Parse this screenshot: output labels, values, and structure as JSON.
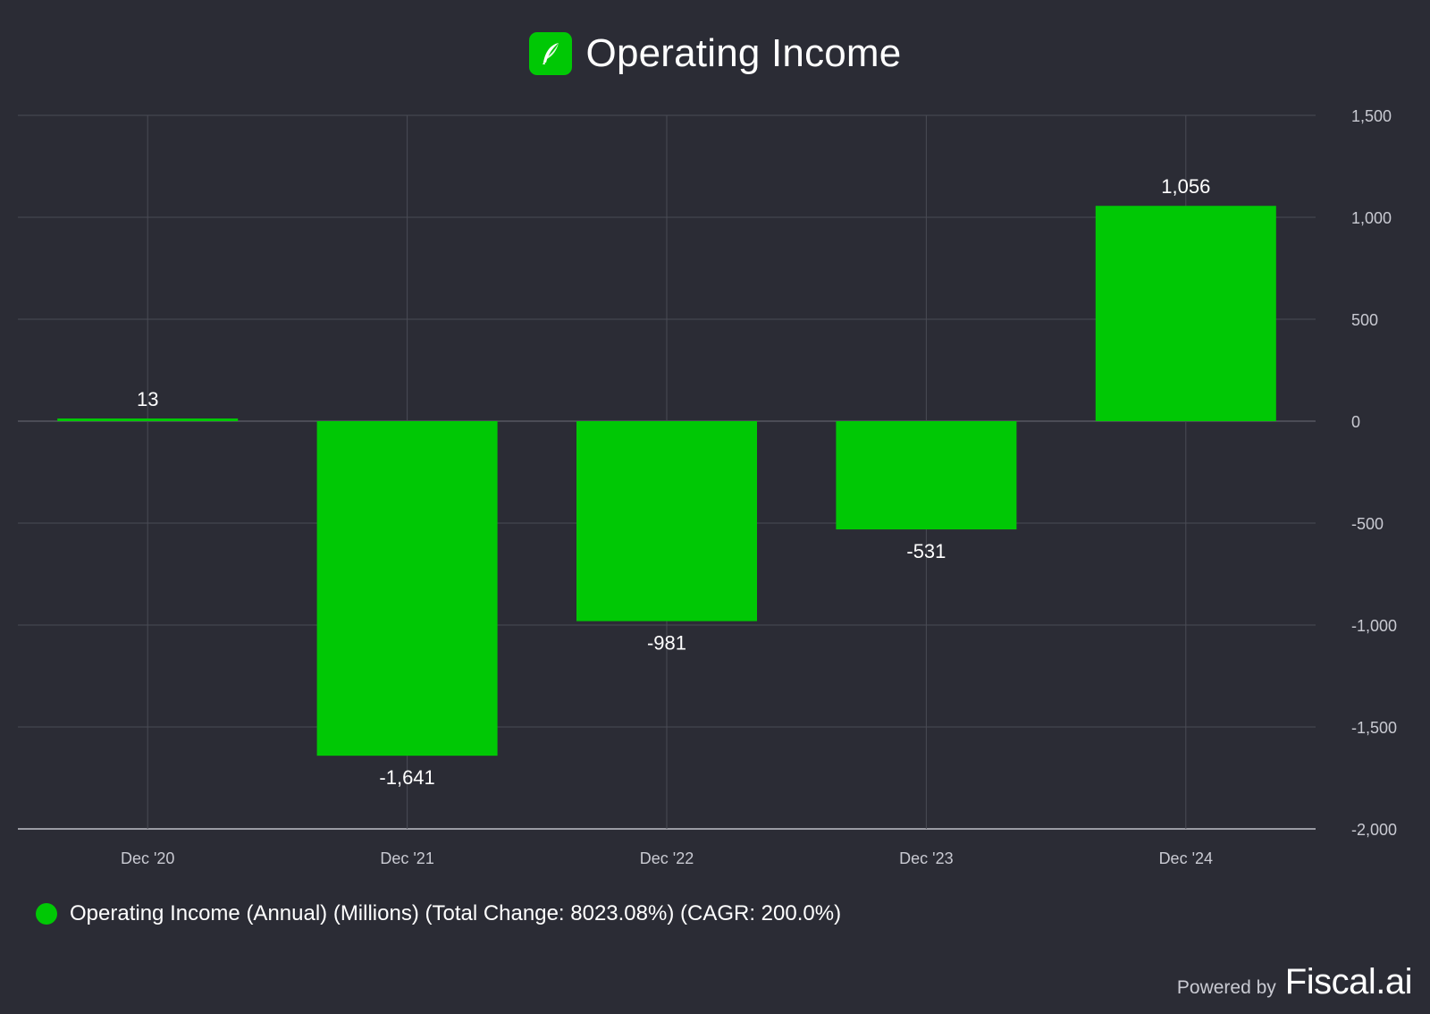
{
  "header": {
    "title": "Operating Income",
    "logo_icon": "robinhood-feather-icon"
  },
  "colors": {
    "background": "#2b2c35",
    "bar": "#00c805",
    "grid": "#4a4b55",
    "text": "#ffffff",
    "muted": "#c9cad2"
  },
  "chart_data": {
    "type": "bar",
    "title": "Operating Income",
    "categories": [
      "Dec '20",
      "Dec '21",
      "Dec '22",
      "Dec '23",
      "Dec '24"
    ],
    "series": [
      {
        "name": "Operating Income (Annual) (Millions) (Total Change: 8023.08%) (CAGR: 200.0%)",
        "values": [
          13,
          -1641,
          -981,
          -531,
          1056
        ],
        "labels": [
          "13",
          "-1,641",
          "-981",
          "-531",
          "1,056"
        ]
      }
    ],
    "ylim": [
      -2000,
      1500
    ],
    "yticks": [
      1500,
      1000,
      500,
      0,
      -500,
      -1000,
      -1500,
      -2000
    ],
    "ytick_labels": [
      "1,500",
      "1,000",
      "500",
      "0",
      "-500",
      "-1,000",
      "-1,500",
      "-2,000"
    ],
    "y_axis_position": "right",
    "grid": true,
    "legend_position": "bottom-left"
  },
  "legend": {
    "label": "Operating Income (Annual) (Millions) (Total Change: 8023.08%) (CAGR: 200.0%)"
  },
  "footer": {
    "powered_by": "Powered by",
    "brand": "Fiscal.ai"
  }
}
